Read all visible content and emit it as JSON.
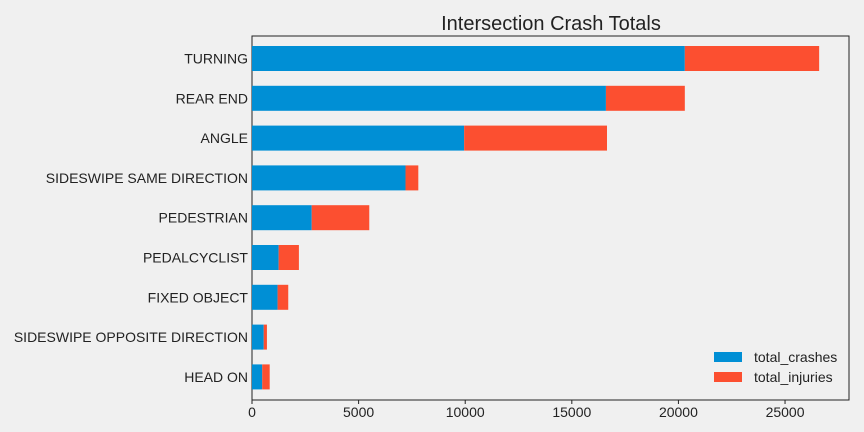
{
  "chart_data": {
    "type": "bar",
    "orientation": "horizontal",
    "stacked": true,
    "title": "Intersection Crash Totals",
    "xlabel": "",
    "ylabel": "",
    "categories": [
      "TURNING",
      "REAR END",
      "ANGLE",
      "SIDESWIPE SAME DIRECTION",
      "PEDESTRIAN",
      "PEDALCYCLIST",
      "FIXED OBJECT",
      "SIDESWIPE OPPOSITE DIRECTION",
      "HEAD ON"
    ],
    "series": [
      {
        "name": "total_crashes",
        "color": "#008fd5",
        "values": [
          20300,
          16600,
          9950,
          7200,
          2800,
          1250,
          1200,
          550,
          480
        ]
      },
      {
        "name": "total_injuries",
        "color": "#fc4f30",
        "values": [
          6300,
          3700,
          6700,
          600,
          2700,
          950,
          500,
          150,
          350
        ]
      }
    ],
    "xlim": [
      0,
      28000
    ],
    "xticks": [
      0,
      5000,
      10000,
      15000,
      20000,
      25000
    ],
    "grid": false,
    "legend_position": "bottom-right"
  }
}
